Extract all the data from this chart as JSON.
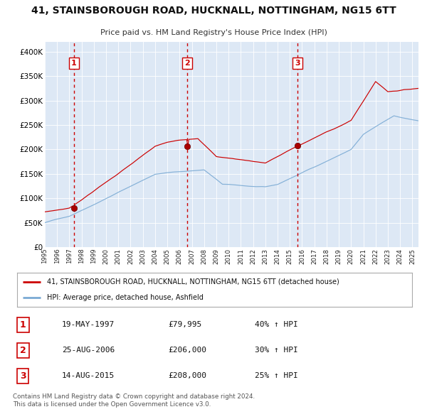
{
  "title": "41, STAINSBOROUGH ROAD, HUCKNALL, NOTTINGHAM, NG15 6TT",
  "subtitle": "Price paid vs. HM Land Registry's House Price Index (HPI)",
  "legend_red": "41, STAINSBOROUGH ROAD, HUCKNALL, NOTTINGHAM, NG15 6TT (detached house)",
  "legend_blue": "HPI: Average price, detached house, Ashfield",
  "footer1": "Contains HM Land Registry data © Crown copyright and database right 2024.",
  "footer2": "This data is licensed under the Open Government Licence v3.0.",
  "sale1_date": "19-MAY-1997",
  "sale1_price": 79995,
  "sale1_hpi": "40% ↑ HPI",
  "sale2_date": "25-AUG-2006",
  "sale2_price": 206000,
  "sale2_hpi": "30% ↑ HPI",
  "sale3_date": "14-AUG-2015",
  "sale3_price": 208000,
  "sale3_hpi": "25% ↑ HPI",
  "sale1_x": 1997.37,
  "sale2_x": 2006.64,
  "sale3_x": 2015.62,
  "ylim": [
    0,
    420000
  ],
  "xlim_start": 1995.0,
  "xlim_end": 2025.5,
  "bg_color": "#dde8f5",
  "grid_color": "#ffffff",
  "red_color": "#cc0000",
  "blue_color": "#7aaad4",
  "vline_color": "#cc0000"
}
